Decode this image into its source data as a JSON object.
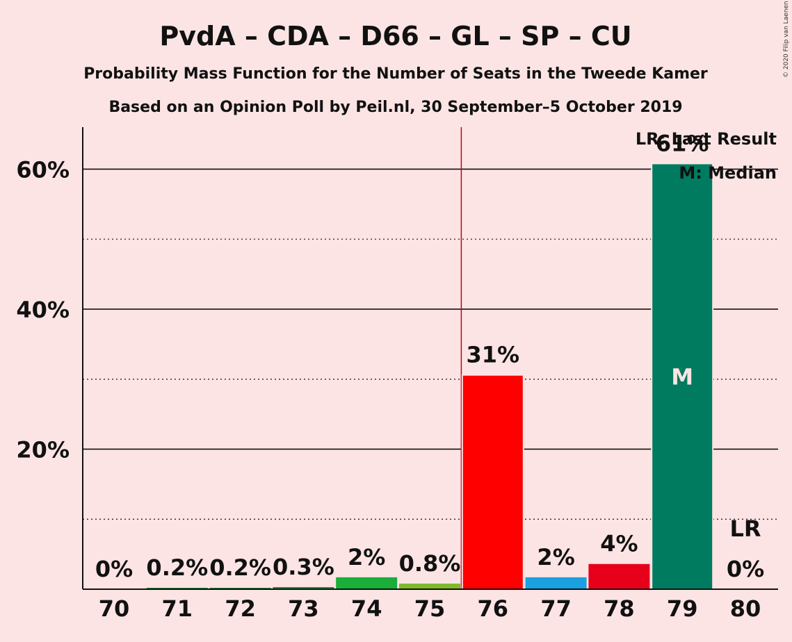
{
  "chart_data": {
    "type": "bar",
    "title": "PvdA – CDA – D66 – GL – SP – CU",
    "subtitle": "Probability Mass Function for the Number of Seats in the Tweede Kamer",
    "subtitle2": "Based on an Opinion Poll by Peil.nl, 30 September–5 October 2019",
    "copyright": "© 2020 Filip van Laenen",
    "categories": [
      "70",
      "71",
      "72",
      "73",
      "74",
      "75",
      "76",
      "77",
      "78",
      "79",
      "80"
    ],
    "values": [
      0,
      0.2,
      0.2,
      0.3,
      1.7,
      0.8,
      30.6,
      1.7,
      3.6,
      60.8,
      0
    ],
    "labels": [
      "0%",
      "0.2%",
      "0.2%",
      "0.3%",
      "2%",
      "0.8%",
      "31%",
      "2%",
      "4%",
      "61%",
      "0%"
    ],
    "colors": [
      "#1e8c3a",
      "#1e8c3a",
      "#1e8c3a",
      "#1e8c3a",
      "#1aae3a",
      "#7dba2c",
      "#ff0000",
      "#1ba0e0",
      "#e8001a",
      "#007b5f",
      "#007b5f"
    ],
    "ylim": [
      0,
      66
    ],
    "yticks": [
      20,
      40,
      60
    ],
    "ytick_labels": [
      "20%",
      "40%",
      "60%"
    ],
    "minor_gridlines": [
      10,
      30,
      50
    ],
    "majority_line_between": [
      "75",
      "76"
    ],
    "majority_line_color": "#c0001a",
    "median_category": "79",
    "median_label": "M",
    "last_result_category": "80",
    "last_result_label": "LR",
    "legend": [
      "LR: Last Result",
      "M: Median"
    ],
    "legend_position": "top-right"
  }
}
